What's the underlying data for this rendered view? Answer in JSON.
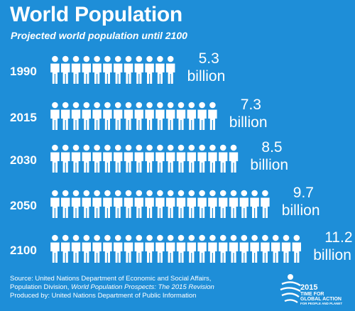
{
  "header": {
    "title": "World Population",
    "subtitle": "Projected world population until 2100"
  },
  "chart_data": {
    "type": "bar",
    "orientation": "horizontal",
    "pictogram": "person",
    "categories": [
      "1990",
      "2015",
      "2030",
      "2050",
      "2100"
    ],
    "values": [
      5.3,
      7.3,
      8.5,
      9.7,
      11.2
    ],
    "value_labels": [
      {
        "number": "5.3",
        "unit": "billion"
      },
      {
        "number": "7.3",
        "unit": "billion"
      },
      {
        "number": "8.5",
        "unit": "billion"
      },
      {
        "number": "9.7",
        "unit": "billion"
      },
      {
        "number": "11.2",
        "unit": "billion"
      }
    ],
    "unit": "billion",
    "title": "World Population",
    "subtitle": "Projected world population until 2100",
    "grid": false,
    "legend": "none"
  },
  "footer": {
    "source_prefix": "Source: United Nations Department of Economic and Social Affairs,",
    "source_line2_prefix": "Population Division, ",
    "source_line2_italic": "World Population Prospects: The 2015 Revision",
    "produced_by": "Produced by: United Nations Department of Public Information"
  },
  "badge": {
    "year": "2015",
    "line1": "TIME FOR",
    "line2": "GLOBAL ACTION",
    "line3": "FOR PEOPLE AND PLANET"
  },
  "colors": {
    "background": "#1e8ed8",
    "foreground": "#ffffff"
  }
}
